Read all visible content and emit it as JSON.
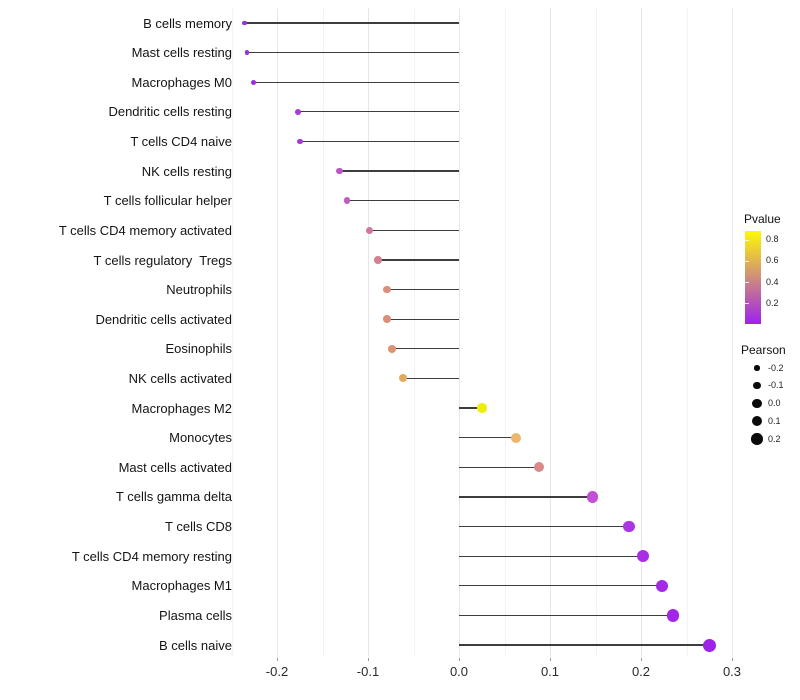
{
  "chart_data": {
    "type": "scatter",
    "subtype": "lollipop",
    "orientation": "horizontal",
    "title": "",
    "xlabel": "",
    "ylabel": "",
    "grid": "on",
    "xlim": [
      -0.26,
      0.3
    ],
    "x_tick_labels": [
      "-0.2",
      "-0.1",
      "0.0",
      "0.1",
      "0.2",
      "0.3"
    ],
    "x_tick_values": [
      -0.2,
      -0.1,
      0.0,
      0.1,
      0.2,
      0.3
    ],
    "categories": [
      "B cells memory",
      "Mast cells resting",
      "Macrophages M0",
      "Dendritic cells resting",
      "T cells CD4 naive",
      "NK cells resting",
      "T cells follicular helper",
      "T cells CD4 memory activated",
      "T cells regulatory  Tregs",
      "Neutrophils",
      "Dendritic cells activated",
      "Eosinophils",
      "NK cells activated",
      "Macrophages M2",
      "Monocytes",
      "Mast cells activated",
      "T cells gamma delta",
      "T cells CD8",
      "T cells CD4 memory resting",
      "Macrophages M1",
      "Plasma cells",
      "B cells naive"
    ],
    "series": [
      {
        "name": "Pearson",
        "values": [
          -0.236,
          -0.233,
          -0.226,
          -0.177,
          -0.175,
          -0.131,
          -0.123,
          -0.098,
          -0.089,
          -0.079,
          -0.079,
          -0.074,
          -0.062,
          0.025,
          0.063,
          0.088,
          0.147,
          0.187,
          0.202,
          0.223,
          0.235,
          0.275
        ]
      }
    ],
    "point_colors": [
      "#9630E3",
      "#9630E3",
      "#9B2EE0",
      "#A83AD9",
      "#A83AD9",
      "#BC54C7",
      "#C25BC1",
      "#D077A2",
      "#D48093",
      "#DA8E7B",
      "#DA8E7B",
      "#DC9376",
      "#E3AA5E",
      "#F0EE09",
      "#ECB76A",
      "#DB8A8A",
      "#C24FD6",
      "#AC35E2",
      "#A72EE4",
      "#A42AE6",
      "#A126E8",
      "#9F22EA"
    ],
    "stick_color": "#3d3d3d",
    "legends": {
      "pvalue": {
        "title": "Pvalue",
        "tick_labels": [
          "0.8",
          "0.6",
          "0.4",
          "0.2"
        ],
        "tick_values": [
          0.8,
          0.6,
          0.4,
          0.2
        ],
        "bar_bottom_value": 0.0,
        "bar_top_value": 0.885,
        "gradient_low": "#A020F0",
        "gradient_high": "#FDFA05",
        "legend_position": "right"
      },
      "pearson": {
        "title": "Pearson",
        "entries": [
          {
            "label": "-0.2",
            "value": -0.2,
            "radius": 2.7
          },
          {
            "label": "-0.1",
            "value": -0.1,
            "radius": 3.7
          },
          {
            "label": "0.0",
            "value": 0.0,
            "radius": 4.6
          },
          {
            "label": "0.1",
            "value": 0.1,
            "radius": 5.2
          },
          {
            "label": "0.2",
            "value": 0.2,
            "radius": 5.8
          }
        ],
        "dot_color": "#0a0a0a",
        "legend_position": "right"
      }
    }
  }
}
